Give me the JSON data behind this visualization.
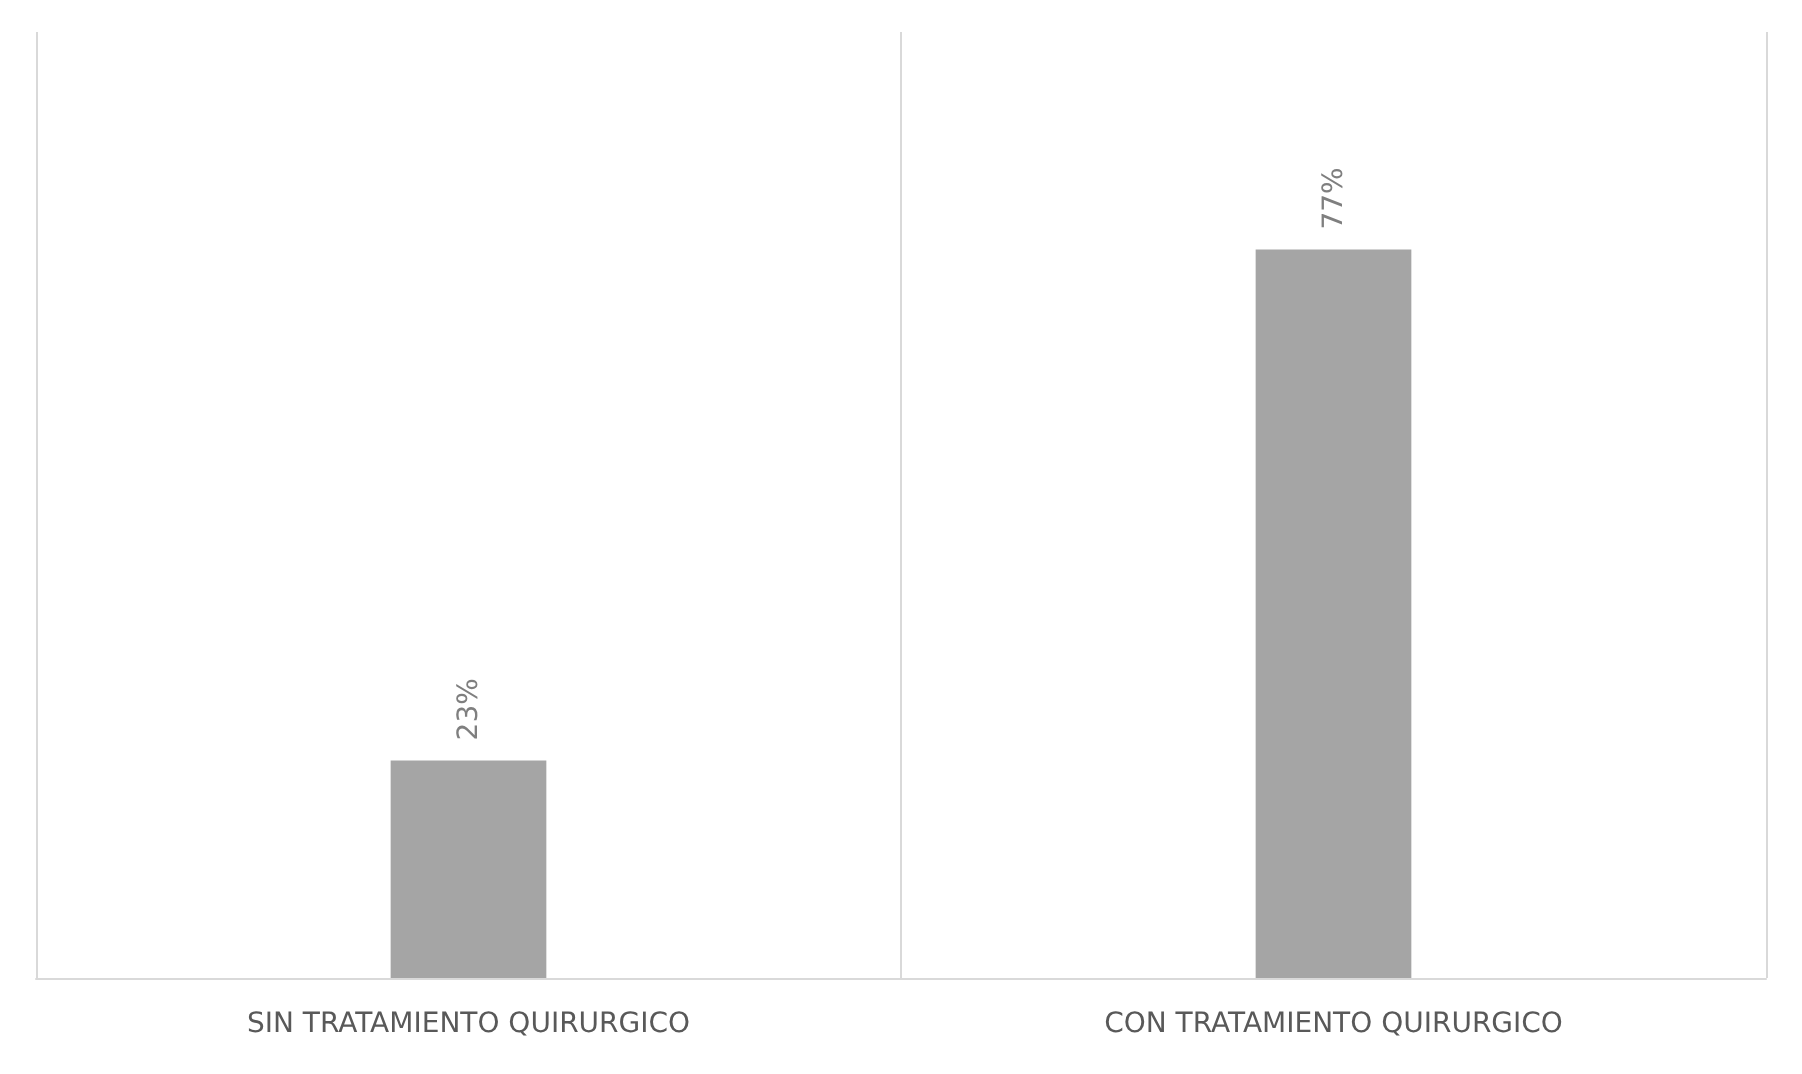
{
  "chart_data": {
    "type": "bar",
    "categories": [
      "SIN TRATAMIENTO QUIRURGICO",
      "CON TRATAMIENTO QUIRURGICO"
    ],
    "values": [
      23,
      77
    ],
    "value_labels": [
      "23%",
      "77%"
    ],
    "color": "#a5a5a5"
  }
}
